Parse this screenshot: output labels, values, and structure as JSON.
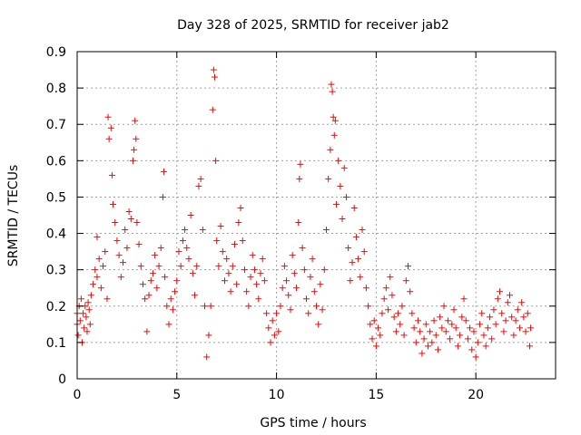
{
  "chart_data": {
    "type": "scatter",
    "title": "Day 328 of 2025, SRMTID for receiver jab2",
    "xlabel": "GPS time / hours",
    "ylabel": "SRMTID / TECUs",
    "xlim": [
      0,
      24
    ],
    "ylim": [
      0,
      0.9
    ],
    "x_ticks": [
      0,
      5,
      10,
      15,
      20
    ],
    "y_ticks": [
      0,
      0.1,
      0.2,
      0.3,
      0.4,
      0.5,
      0.6,
      0.7,
      0.8,
      0.9
    ],
    "x_tick_labels": [
      "0",
      "5",
      "10",
      "15",
      "20"
    ],
    "y_tick_labels": [
      "0",
      "0.1",
      "0.2",
      "0.3",
      "0.4",
      "0.5",
      "0.6",
      "0.7",
      "0.8",
      "0.9"
    ],
    "grid": true,
    "marker": "+",
    "marker_color": "#ff0000",
    "series": [
      {
        "name": "SRMTID",
        "points": [
          [
            0.0,
            0.15
          ],
          [
            0.0,
            0.18
          ],
          [
            0.05,
            0.12
          ],
          [
            0.1,
            0.2
          ],
          [
            0.15,
            0.16
          ],
          [
            0.2,
            0.22
          ],
          [
            0.25,
            0.1
          ],
          [
            0.3,
            0.18
          ],
          [
            0.35,
            0.14
          ],
          [
            0.4,
            0.2
          ],
          [
            0.45,
            0.17
          ],
          [
            0.5,
            0.13
          ],
          [
            0.55,
            0.21
          ],
          [
            0.6,
            0.19
          ],
          [
            0.65,
            0.15
          ],
          [
            0.7,
            0.23
          ],
          [
            0.8,
            0.26
          ],
          [
            0.9,
            0.3
          ],
          [
            1.0,
            0.28
          ],
          [
            1.0,
            0.39
          ],
          [
            1.1,
            0.33
          ],
          [
            1.2,
            0.25
          ],
          [
            1.3,
            0.31
          ],
          [
            1.4,
            0.35
          ],
          [
            1.5,
            0.22
          ],
          [
            1.55,
            0.72
          ],
          [
            1.6,
            0.66
          ],
          [
            1.7,
            0.69
          ],
          [
            1.75,
            0.56
          ],
          [
            1.8,
            0.48
          ],
          [
            1.9,
            0.43
          ],
          [
            2.0,
            0.38
          ],
          [
            2.1,
            0.34
          ],
          [
            2.2,
            0.28
          ],
          [
            2.3,
            0.32
          ],
          [
            2.4,
            0.41
          ],
          [
            2.5,
            0.36
          ],
          [
            2.6,
            0.46
          ],
          [
            2.7,
            0.44
          ],
          [
            2.8,
            0.6
          ],
          [
            2.85,
            0.63
          ],
          [
            2.9,
            0.71
          ],
          [
            2.95,
            0.66
          ],
          [
            3.0,
            0.43
          ],
          [
            3.1,
            0.37
          ],
          [
            3.2,
            0.31
          ],
          [
            3.3,
            0.26
          ],
          [
            3.4,
            0.22
          ],
          [
            3.5,
            0.13
          ],
          [
            3.6,
            0.23
          ],
          [
            3.7,
            0.27
          ],
          [
            3.8,
            0.29
          ],
          [
            3.9,
            0.34
          ],
          [
            4.0,
            0.25
          ],
          [
            4.1,
            0.31
          ],
          [
            4.2,
            0.36
          ],
          [
            4.3,
            0.5
          ],
          [
            4.35,
            0.57
          ],
          [
            4.4,
            0.28
          ],
          [
            4.5,
            0.2
          ],
          [
            4.6,
            0.15
          ],
          [
            4.7,
            0.22
          ],
          [
            4.8,
            0.19
          ],
          [
            4.9,
            0.24
          ],
          [
            5.0,
            0.27
          ],
          [
            5.1,
            0.35
          ],
          [
            5.2,
            0.31
          ],
          [
            5.3,
            0.38
          ],
          [
            5.4,
            0.41
          ],
          [
            5.5,
            0.36
          ],
          [
            5.6,
            0.33
          ],
          [
            5.7,
            0.45
          ],
          [
            5.8,
            0.29
          ],
          [
            5.9,
            0.23
          ],
          [
            6.0,
            0.31
          ],
          [
            6.1,
            0.53
          ],
          [
            6.2,
            0.55
          ],
          [
            6.3,
            0.41
          ],
          [
            6.4,
            0.2
          ],
          [
            6.5,
            0.06
          ],
          [
            6.6,
            0.12
          ],
          [
            6.7,
            0.2
          ],
          [
            6.8,
            0.74
          ],
          [
            6.85,
            0.85
          ],
          [
            6.9,
            0.83
          ],
          [
            6.95,
            0.6
          ],
          [
            7.0,
            0.38
          ],
          [
            7.1,
            0.31
          ],
          [
            7.2,
            0.42
          ],
          [
            7.3,
            0.35
          ],
          [
            7.4,
            0.27
          ],
          [
            7.5,
            0.33
          ],
          [
            7.6,
            0.29
          ],
          [
            7.7,
            0.24
          ],
          [
            7.8,
            0.31
          ],
          [
            7.9,
            0.37
          ],
          [
            8.0,
            0.26
          ],
          [
            8.1,
            0.43
          ],
          [
            8.2,
            0.47
          ],
          [
            8.3,
            0.38
          ],
          [
            8.4,
            0.3
          ],
          [
            8.5,
            0.24
          ],
          [
            8.6,
            0.2
          ],
          [
            8.7,
            0.28
          ],
          [
            8.8,
            0.34
          ],
          [
            8.9,
            0.3
          ],
          [
            9.0,
            0.26
          ],
          [
            9.1,
            0.22
          ],
          [
            9.2,
            0.29
          ],
          [
            9.3,
            0.33
          ],
          [
            9.4,
            0.27
          ],
          [
            9.5,
            0.18
          ],
          [
            9.6,
            0.14
          ],
          [
            9.7,
            0.1
          ],
          [
            9.8,
            0.16
          ],
          [
            9.9,
            0.12
          ],
          [
            10.0,
            0.18
          ],
          [
            10.1,
            0.13
          ],
          [
            10.2,
            0.2
          ],
          [
            10.3,
            0.25
          ],
          [
            10.4,
            0.31
          ],
          [
            10.5,
            0.27
          ],
          [
            10.6,
            0.23
          ],
          [
            10.7,
            0.19
          ],
          [
            10.8,
            0.34
          ],
          [
            10.9,
            0.29
          ],
          [
            11.0,
            0.25
          ],
          [
            11.1,
            0.43
          ],
          [
            11.15,
            0.55
          ],
          [
            11.2,
            0.59
          ],
          [
            11.3,
            0.36
          ],
          [
            11.4,
            0.3
          ],
          [
            11.5,
            0.22
          ],
          [
            11.6,
            0.18
          ],
          [
            11.7,
            0.28
          ],
          [
            11.8,
            0.33
          ],
          [
            11.9,
            0.24
          ],
          [
            12.0,
            0.2
          ],
          [
            12.1,
            0.15
          ],
          [
            12.2,
            0.26
          ],
          [
            12.3,
            0.19
          ],
          [
            12.4,
            0.3
          ],
          [
            12.5,
            0.41
          ],
          [
            12.6,
            0.55
          ],
          [
            12.7,
            0.63
          ],
          [
            12.75,
            0.81
          ],
          [
            12.8,
            0.79
          ],
          [
            12.85,
            0.72
          ],
          [
            12.9,
            0.67
          ],
          [
            12.95,
            0.71
          ],
          [
            13.0,
            0.48
          ],
          [
            13.1,
            0.6
          ],
          [
            13.2,
            0.53
          ],
          [
            13.3,
            0.44
          ],
          [
            13.4,
            0.58
          ],
          [
            13.5,
            0.5
          ],
          [
            13.6,
            0.36
          ],
          [
            13.7,
            0.27
          ],
          [
            13.8,
            0.32
          ],
          [
            13.9,
            0.47
          ],
          [
            14.0,
            0.39
          ],
          [
            14.1,
            0.33
          ],
          [
            14.2,
            0.28
          ],
          [
            14.3,
            0.41
          ],
          [
            14.4,
            0.35
          ],
          [
            14.5,
            0.25
          ],
          [
            14.6,
            0.2
          ],
          [
            14.7,
            0.15
          ],
          [
            14.8,
            0.11
          ],
          [
            14.9,
            0.16
          ],
          [
            15.0,
            0.09
          ],
          [
            15.1,
            0.14
          ],
          [
            15.2,
            0.12
          ],
          [
            15.3,
            0.18
          ],
          [
            15.4,
            0.22
          ],
          [
            15.5,
            0.25
          ],
          [
            15.6,
            0.19
          ],
          [
            15.7,
            0.28
          ],
          [
            15.8,
            0.23
          ],
          [
            15.9,
            0.17
          ],
          [
            16.0,
            0.13
          ],
          [
            16.1,
            0.18
          ],
          [
            16.2,
            0.15
          ],
          [
            16.3,
            0.2
          ],
          [
            16.4,
            0.12
          ],
          [
            16.5,
            0.27
          ],
          [
            16.6,
            0.31
          ],
          [
            16.7,
            0.24
          ],
          [
            16.8,
            0.18
          ],
          [
            16.9,
            0.14
          ],
          [
            17.0,
            0.1
          ],
          [
            17.1,
            0.16
          ],
          [
            17.2,
            0.13
          ],
          [
            17.3,
            0.07
          ],
          [
            17.4,
            0.11
          ],
          [
            17.5,
            0.15
          ],
          [
            17.6,
            0.09
          ],
          [
            17.7,
            0.13
          ],
          [
            17.8,
            0.1
          ],
          [
            17.9,
            0.16
          ],
          [
            18.0,
            0.12
          ],
          [
            18.1,
            0.08
          ],
          [
            18.2,
            0.17
          ],
          [
            18.3,
            0.14
          ],
          [
            18.4,
            0.2
          ],
          [
            18.5,
            0.13
          ],
          [
            18.6,
            0.16
          ],
          [
            18.7,
            0.11
          ],
          [
            18.8,
            0.15
          ],
          [
            18.9,
            0.19
          ],
          [
            19.0,
            0.14
          ],
          [
            19.1,
            0.09
          ],
          [
            19.2,
            0.12
          ],
          [
            19.3,
            0.17
          ],
          [
            19.4,
            0.22
          ],
          [
            19.5,
            0.16
          ],
          [
            19.6,
            0.11
          ],
          [
            19.7,
            0.14
          ],
          [
            19.8,
            0.08
          ],
          [
            19.9,
            0.13
          ],
          [
            20.0,
            0.06
          ],
          [
            20.1,
            0.1
          ],
          [
            20.2,
            0.15
          ],
          [
            20.3,
            0.18
          ],
          [
            20.4,
            0.12
          ],
          [
            20.5,
            0.09
          ],
          [
            20.6,
            0.14
          ],
          [
            20.7,
            0.17
          ],
          [
            20.8,
            0.11
          ],
          [
            20.9,
            0.19
          ],
          [
            21.0,
            0.15
          ],
          [
            21.1,
            0.22
          ],
          [
            21.2,
            0.24
          ],
          [
            21.3,
            0.18
          ],
          [
            21.4,
            0.13
          ],
          [
            21.5,
            0.16
          ],
          [
            21.6,
            0.21
          ],
          [
            21.7,
            0.23
          ],
          [
            21.8,
            0.17
          ],
          [
            21.9,
            0.12
          ],
          [
            22.0,
            0.16
          ],
          [
            22.1,
            0.19
          ],
          [
            22.2,
            0.14
          ],
          [
            22.3,
            0.21
          ],
          [
            22.4,
            0.17
          ],
          [
            22.5,
            0.13
          ],
          [
            22.6,
            0.18
          ],
          [
            22.7,
            0.09
          ],
          [
            22.75,
            0.14
          ]
        ]
      }
    ]
  }
}
